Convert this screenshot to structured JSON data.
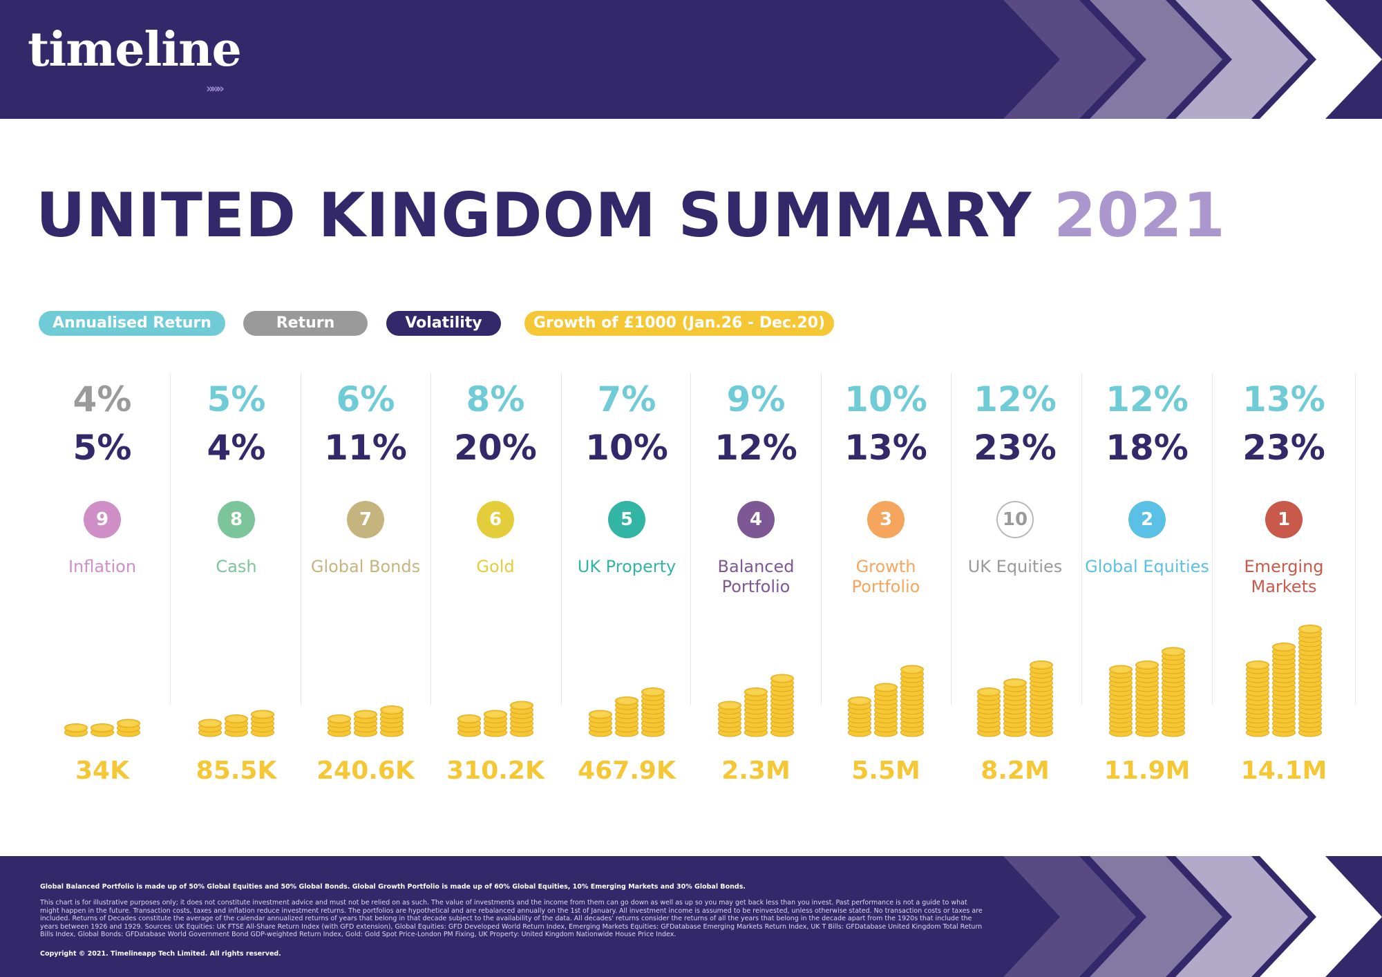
{
  "header": {
    "logo_text": "timeline",
    "logo_arrows": "»»»"
  },
  "title": {
    "main": "UNITED KINGDOM SUMMARY",
    "year": "2021"
  },
  "legend": [
    {
      "label": "Annualised Return",
      "color": "#6fccd6"
    },
    {
      "label": "Return",
      "color": "#9a9a9a"
    },
    {
      "label": "Volatility",
      "color": "#33286a"
    },
    {
      "label": "Growth of £1000 (Jan.26 - Dec.20)",
      "color": "#f6c734"
    }
  ],
  "columns": [
    {
      "top_value": "4%",
      "top_color": "#9a9a9a",
      "volatility": "5%",
      "rank": "9",
      "rank_color": "#cf8fc6",
      "name": "Inflation",
      "name_color": "#cf8fc6",
      "growth": "34K"
    },
    {
      "top_value": "5%",
      "top_color": "#6fccd6",
      "volatility": "4%",
      "rank": "8",
      "rank_color": "#7cc49a",
      "name": "Cash",
      "name_color": "#7cc49a",
      "growth": "85.5K"
    },
    {
      "top_value": "6%",
      "top_color": "#6fccd6",
      "volatility": "11%",
      "rank": "7",
      "rank_color": "#c6b47e",
      "name": "Global Bonds",
      "name_color": "#c6b47e",
      "growth": "240.6K"
    },
    {
      "top_value": "8%",
      "top_color": "#6fccd6",
      "volatility": "20%",
      "rank": "6",
      "rank_color": "#e3cd3a",
      "name": "Gold",
      "name_color": "#e3cd3a",
      "growth": "310.2K"
    },
    {
      "top_value": "7%",
      "top_color": "#6fccd6",
      "volatility": "10%",
      "rank": "5",
      "rank_color": "#33b5a5",
      "name": "UK Property",
      "name_color": "#33b5a5",
      "growth": "467.9K"
    },
    {
      "top_value": "9%",
      "top_color": "#6fccd6",
      "volatility": "12%",
      "rank": "4",
      "rank_color": "#7d5894",
      "name": "Balanced Portfolio",
      "name_color": "#7d5894",
      "growth": "2.3M"
    },
    {
      "top_value": "10%",
      "top_color": "#6fccd6",
      "volatility": "13%",
      "rank": "3",
      "rank_color": "#f5a55c",
      "name": "Growth Portfolio",
      "name_color": "#f5a55c",
      "growth": "5.5M"
    },
    {
      "top_value": "12%",
      "top_color": "#6fccd6",
      "volatility": "23%",
      "rank": "10",
      "rank_color": "#9a9a9a",
      "name": "UK Equities",
      "name_color": "#9a9a9a",
      "growth": "8.2M",
      "rank_outline": true
    },
    {
      "top_value": "12%",
      "top_color": "#6fccd6",
      "volatility": "18%",
      "rank": "2",
      "rank_color": "#5bc0e6",
      "name": "Global Equities",
      "name_color": "#5bc0e6",
      "growth": "11.9M"
    },
    {
      "top_value": "13%",
      "top_color": "#6fccd6",
      "volatility": "23%",
      "rank": "1",
      "rank_color": "#c9594a",
      "name": "Emerging Markets",
      "name_color": "#c9594a",
      "growth": "14.1M"
    }
  ],
  "chart_data": {
    "type": "table",
    "title": "UNITED KINGDOM SUMMARY 2021",
    "series_legend": [
      "Annualised Return",
      "Return",
      "Volatility",
      "Growth of £1000 (Jan.26 - Dec.20)"
    ],
    "categories": [
      "Inflation",
      "Cash",
      "Global Bonds",
      "Gold",
      "UK Property",
      "Balanced Portfolio",
      "Growth Portfolio",
      "UK Equities",
      "Global Equities",
      "Emerging Markets"
    ],
    "annualised_return_pct": [
      4,
      5,
      6,
      8,
      7,
      9,
      10,
      12,
      12,
      13
    ],
    "volatility_pct": [
      5,
      4,
      11,
      20,
      10,
      12,
      13,
      23,
      18,
      23
    ],
    "rank": [
      9,
      8,
      7,
      6,
      5,
      4,
      3,
      10,
      2,
      1
    ],
    "growth_of_1000": [
      "34K",
      "85.5K",
      "240.6K",
      "310.2K",
      "467.9K",
      "2.3M",
      "5.5M",
      "8.2M",
      "11.9M",
      "14.1M"
    ],
    "coin_stack_levels": [
      [
        2,
        2,
        3
      ],
      [
        3,
        4,
        5
      ],
      [
        4,
        5,
        6
      ],
      [
        4,
        5,
        7
      ],
      [
        5,
        8,
        10
      ],
      [
        7,
        10,
        13
      ],
      [
        8,
        11,
        15
      ],
      [
        10,
        12,
        16
      ],
      [
        15,
        16,
        19
      ],
      [
        16,
        20,
        24
      ]
    ]
  },
  "footer": {
    "composition": "Global Balanced Portfolio is made up of 50% Global Equities and 50% Global Bonds. Global Growth Portfolio is made up of 60% Global Equities, 10% Emerging Markets and 30% Global Bonds.",
    "disclaimer": "This chart is for illustrative purposes only; it does not constitute investment advice and must not be relied on as such. The value of investments and the income from them can go down as well as up so you may get back less than you invest. Past performance is not a guide to what might happen in the future. Transaction costs, taxes and inflation reduce investment returns. The portfolios are hypothetical and are rebalanced annually on the 1st of January. All investment income is assumed to be reinvested, unless otherwise stated. No transaction costs or taxes are included. Returns of Decades constitute the average of the calendar annualized returns of years that belong in that decade subject to the availability of the data. All decades' returns consider the returns of all the years that belong in the decade apart from the 1920s that include the years between 1926 and 1929. Sources: UK Equities: UK FTSE All-Share Return Index (with GFD extension), Global Equities: GFD Developed World Return Index, Emerging Markets Equities: GFDatabase Emerging Markets Return Index, UK T Bills: GFDatabase United Kingdom Total Return Bills Index, Global Bonds: GFDatabase World Government Bond GDP-weighted Return Index, Gold: Gold Spot Price-London PM Fixing, UK Property: United Kingdom Nationwide House Price Index.",
    "copyright": "Copyright © 2021. Timelineapp Tech Limited. All rights reserved."
  }
}
